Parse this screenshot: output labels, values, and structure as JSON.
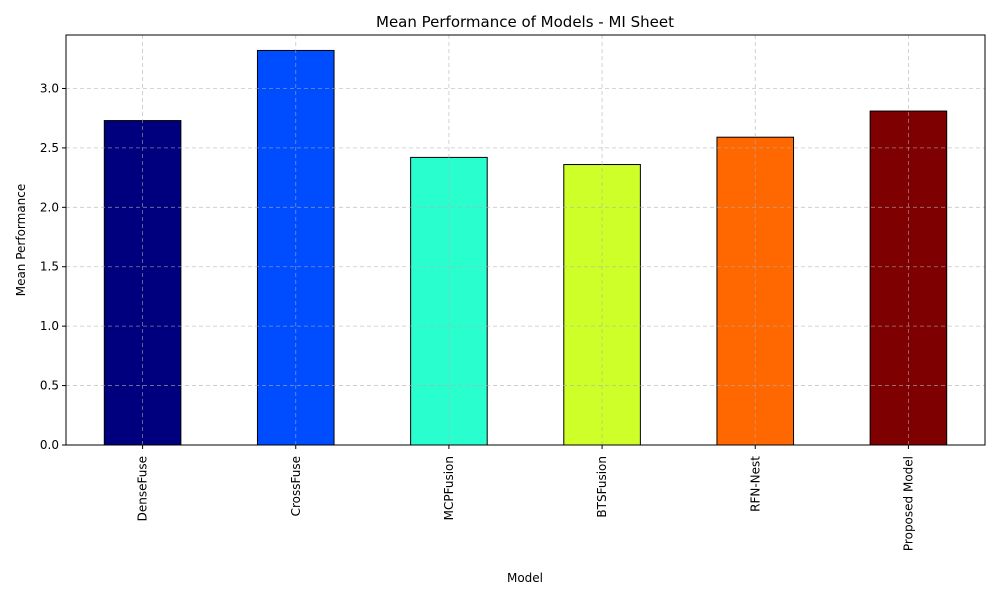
{
  "chart_data": {
    "type": "bar",
    "title": "Mean Performance of Models - MI Sheet",
    "xlabel": "Model",
    "ylabel": "Mean Performance",
    "categories": [
      "DenseFuse",
      "CrossFuse",
      "MCPFusion",
      "BTSFusion",
      "RFN-Nest",
      "Proposed Model"
    ],
    "values": [
      2.73,
      3.32,
      2.42,
      2.36,
      2.59,
      2.81
    ],
    "colors": [
      "#00007f",
      "#004cff",
      "#29ffce",
      "#ceff29",
      "#ff6800",
      "#7f0000"
    ],
    "ylim": [
      0,
      3.45
    ],
    "yticks": [
      0.0,
      0.5,
      1.0,
      1.5,
      2.0,
      2.5,
      3.0
    ],
    "ytick_labels": [
      "0.0",
      "0.5",
      "1.0",
      "1.5",
      "2.0",
      "2.5",
      "3.0"
    ],
    "grid": true,
    "xtick_rotation": "vertical"
  }
}
